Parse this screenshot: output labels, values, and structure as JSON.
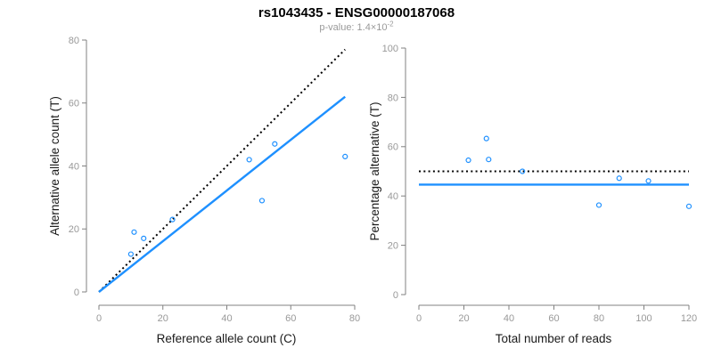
{
  "title": "rs1043435 - ENSG00000187068",
  "subtitle": {
    "base": "p-value: 1.4×10",
    "exponent": "-2"
  },
  "colors": {
    "accent_blue": "#1E90FF",
    "dotted_black": "#000000",
    "axis_line": "#808080",
    "tick_label": "#999999",
    "axis_title": "#1a1a1a"
  },
  "chart_data": [
    {
      "type": "scatter",
      "xlabel": "Reference allele count (C)",
      "ylabel": "Alternative allele count (T)",
      "xlim": [
        0,
        80
      ],
      "ylim": [
        0,
        80
      ],
      "xticks": [
        0,
        20,
        40,
        60,
        80
      ],
      "yticks": [
        0,
        20,
        40,
        60,
        80
      ],
      "grid": false,
      "point_color": "#1E90FF",
      "points": [
        [
          10,
          12
        ],
        [
          11,
          19
        ],
        [
          14,
          17
        ],
        [
          23,
          23
        ],
        [
          47,
          42
        ],
        [
          51,
          29
        ],
        [
          55,
          47
        ],
        [
          77,
          43
        ]
      ],
      "lines": [
        {
          "name": "identity-line",
          "style": "dotted",
          "color": "#000000",
          "from": [
            0,
            0
          ],
          "to": [
            77,
            77
          ]
        },
        {
          "name": "fit-line",
          "style": "solid",
          "color": "#1E90FF",
          "from": [
            0,
            0
          ],
          "to": [
            77,
            62
          ]
        }
      ]
    },
    {
      "type": "scatter",
      "xlabel": "Total number of reads",
      "ylabel": "Percentage alternative (T)",
      "xlim": [
        0,
        120
      ],
      "ylim": [
        0,
        100
      ],
      "xticks": [
        0,
        20,
        40,
        60,
        80,
        100,
        120
      ],
      "yticks": [
        0,
        20,
        40,
        60,
        80,
        100
      ],
      "grid": false,
      "point_color": "#1E90FF",
      "points": [
        [
          22,
          54.5
        ],
        [
          30,
          63.3
        ],
        [
          31,
          54.8
        ],
        [
          46,
          50.0
        ],
        [
          80,
          36.3
        ],
        [
          89,
          47.2
        ],
        [
          102,
          46.1
        ],
        [
          120,
          35.8
        ]
      ],
      "lines": [
        {
          "name": "expected-50pct-line",
          "style": "dotted",
          "color": "#000000",
          "from": [
            0,
            50
          ],
          "to": [
            120,
            50
          ]
        },
        {
          "name": "mean-ratio-line",
          "style": "solid",
          "color": "#1E90FF",
          "from": [
            0,
            44.6
          ],
          "to": [
            120,
            44.6
          ]
        }
      ]
    }
  ]
}
